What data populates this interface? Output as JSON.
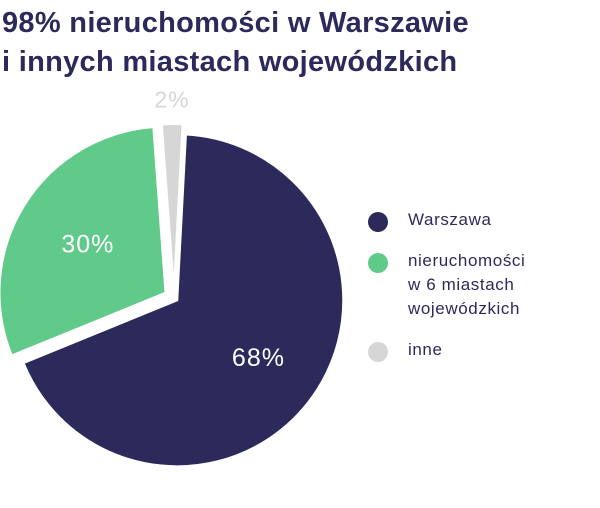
{
  "chart_data": {
    "type": "pie",
    "title_lines": [
      "98% nieruchomości w Warszawie",
      "i innych miastach wojewódzkich"
    ],
    "slices": [
      {
        "label": "Warszawa",
        "label_lines": [
          "Warszawa"
        ],
        "value": 68,
        "value_label": "68%",
        "color": "#2b2a5b",
        "label_color": "#ffffff"
      },
      {
        "label": "nieruchomości w 6 miastach wojewódzkich",
        "label_lines": [
          "nieruchomości",
          "w 6 miastach",
          "wojewódzkich"
        ],
        "value": 30,
        "value_label": "30%",
        "color": "#5fca8a",
        "label_color": "#ffffff"
      },
      {
        "label": "inne",
        "label_lines": [
          "inne"
        ],
        "value": 2,
        "value_label": "2%",
        "color": "#d6d6d6",
        "label_color": "#d6d6d6"
      }
    ],
    "legend_position": "right"
  }
}
